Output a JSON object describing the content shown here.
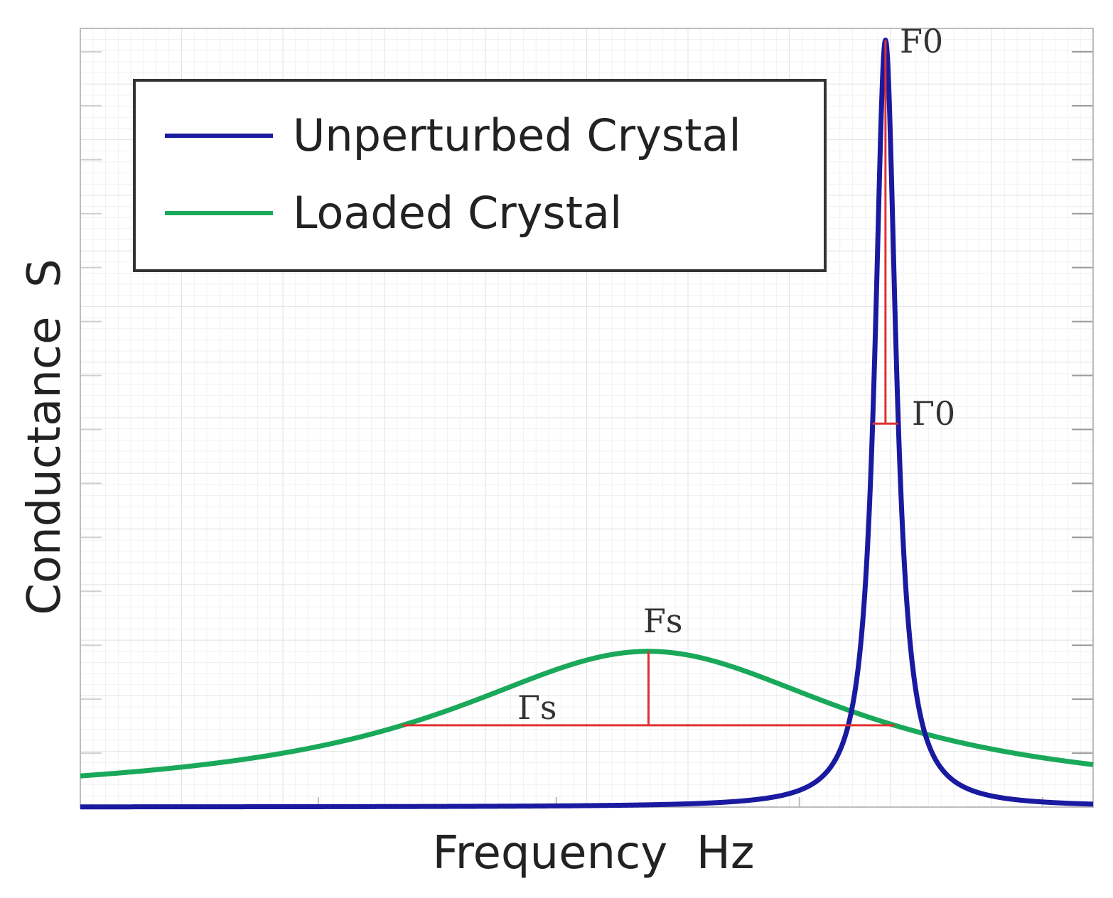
{
  "chart_data": {
    "type": "line",
    "title": "",
    "xlabel": "Frequency  Hz",
    "ylabel": "Conductance  S",
    "xlim": [
      0,
      1
    ],
    "ylim": [
      0,
      1
    ],
    "grid": true,
    "legend_position": "top-left",
    "series": [
      {
        "name": "Unperturbed Crystal",
        "color": "#1a1aa0",
        "model": "lorentzian",
        "center": 0.795,
        "half_width": 0.0127,
        "peak": 0.985,
        "baseline": 0.0
      },
      {
        "name": "Loaded Crystal",
        "color": "#1aa85a",
        "model": "lorentzian",
        "center": 0.561,
        "half_width": 0.243,
        "peak": 0.2,
        "baseline": 0.01
      }
    ],
    "annotations": [
      {
        "label": "F0",
        "series": "Unperturbed Crystal",
        "kind": "peak"
      },
      {
        "label": "Γ0",
        "series": "Unperturbed Crystal",
        "kind": "width"
      },
      {
        "label": "Fs",
        "series": "Loaded Crystal",
        "kind": "peak"
      },
      {
        "label": "Γs",
        "series": "Loaded Crystal",
        "kind": "width"
      }
    ],
    "annotation_color": "#e03030"
  }
}
